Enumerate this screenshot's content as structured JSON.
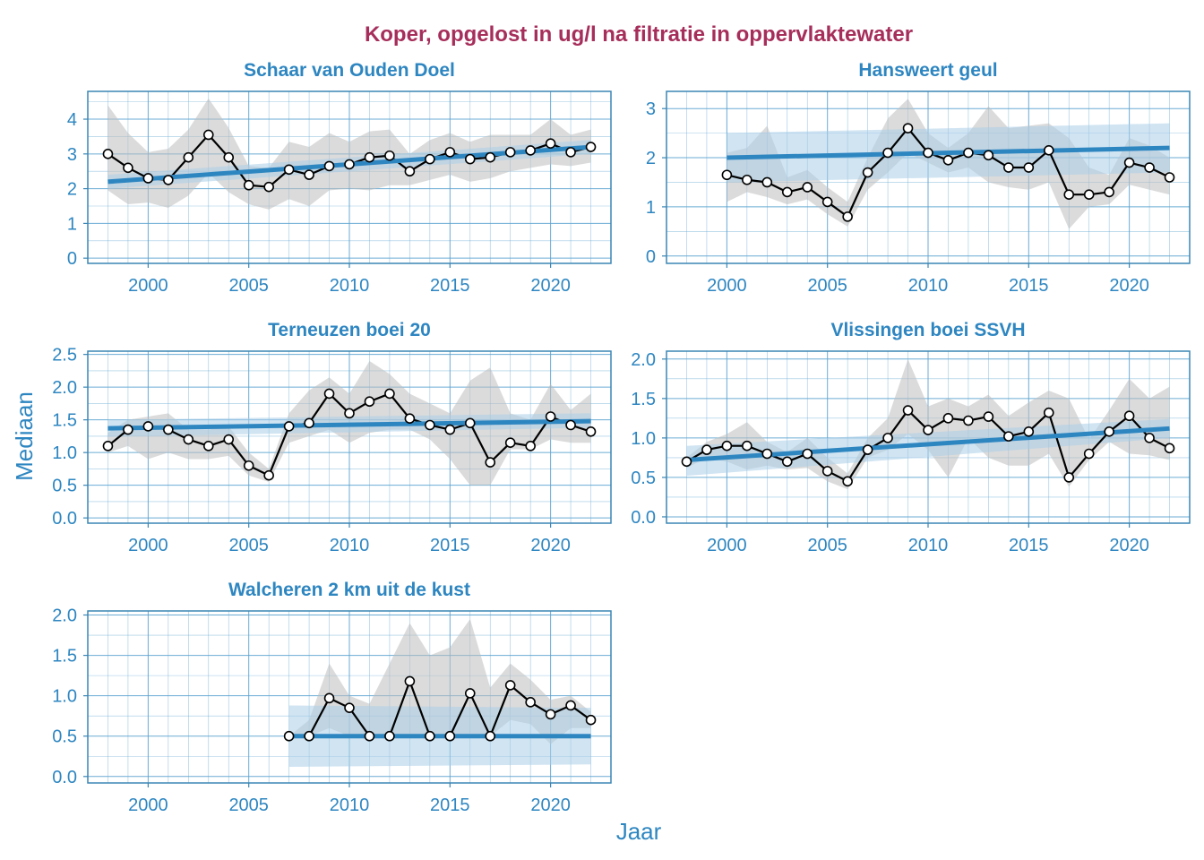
{
  "colors": {
    "title": "#a62e5a",
    "blue": "#2e86c1",
    "grid": "#5ba3d0",
    "frame": "#3a86b4",
    "ribbon": "#bdbdbd",
    "trend_band": "#a9cde8",
    "line": "#000000",
    "point_fill": "#ffffff"
  },
  "chart_data": {
    "type": "line",
    "title": "Koper, opgelost in ug/l na filtratie in oppervlaktewater",
    "xlabel": "Jaar",
    "ylabel": "Mediaan",
    "xlim": [
      1997,
      2023
    ],
    "x_ticks": [
      2000,
      2005,
      2010,
      2015,
      2020
    ],
    "grid": true,
    "panels": [
      {
        "title": "Schaar van Ouden Doel",
        "ylim": [
          -0.15,
          4.8
        ],
        "y_ticks": [
          0,
          1,
          2,
          3,
          4
        ],
        "y_tick_labels": [
          "0",
          "1",
          "2",
          "3",
          "4"
        ],
        "x": [
          1998,
          1999,
          2000,
          2001,
          2002,
          2003,
          2004,
          2005,
          2006,
          2007,
          2008,
          2009,
          2010,
          2011,
          2012,
          2013,
          2014,
          2015,
          2016,
          2017,
          2018,
          2019,
          2020,
          2021,
          2022
        ],
        "y": [
          3.0,
          2.6,
          2.3,
          2.25,
          2.9,
          3.55,
          2.9,
          2.1,
          2.05,
          2.55,
          2.4,
          2.65,
          2.7,
          2.9,
          2.95,
          2.5,
          2.85,
          3.05,
          2.85,
          2.9,
          3.05,
          3.1,
          3.3,
          3.05,
          3.2
        ],
        "lower": [
          1.95,
          1.55,
          1.6,
          1.45,
          1.8,
          2.45,
          1.9,
          1.55,
          1.4,
          1.7,
          1.5,
          1.95,
          2.0,
          1.95,
          2.1,
          2.1,
          2.25,
          2.4,
          2.2,
          2.3,
          2.5,
          2.6,
          2.7,
          2.65,
          2.75
        ],
        "upper": [
          4.4,
          3.6,
          3.05,
          3.15,
          3.7,
          4.6,
          3.75,
          2.65,
          2.6,
          3.35,
          3.2,
          3.6,
          3.35,
          3.65,
          3.7,
          3.0,
          3.4,
          3.6,
          3.35,
          3.55,
          3.55,
          3.55,
          4.0,
          3.55,
          3.7
        ],
        "trend": {
          "x": [
            1998,
            2022
          ],
          "y": [
            2.2,
            3.2
          ]
        },
        "trend_band": {
          "lower": [
            2.0,
            3.0
          ],
          "upper": [
            2.4,
            3.4
          ]
        }
      },
      {
        "title": "Hansweert geul",
        "ylim": [
          -0.15,
          3.35
        ],
        "y_ticks": [
          0,
          1,
          2,
          3
        ],
        "y_tick_labels": [
          "0",
          "1",
          "2",
          "3"
        ],
        "x": [
          2000,
          2001,
          2002,
          2003,
          2004,
          2005,
          2006,
          2007,
          2008,
          2009,
          2010,
          2011,
          2012,
          2013,
          2014,
          2015,
          2016,
          2017,
          2018,
          2019,
          2020,
          2021,
          2022
        ],
        "y": [
          1.65,
          1.55,
          1.5,
          1.3,
          1.4,
          1.1,
          0.8,
          1.7,
          2.1,
          2.6,
          2.1,
          1.95,
          2.1,
          2.05,
          1.8,
          1.8,
          2.15,
          1.25,
          1.25,
          1.3,
          1.9,
          1.8,
          1.6
        ],
        "lower": [
          1.1,
          1.3,
          1.2,
          1.05,
          1.15,
          0.85,
          0.6,
          1.35,
          1.7,
          2.1,
          1.9,
          1.7,
          1.8,
          1.5,
          1.4,
          1.35,
          1.5,
          0.55,
          1.0,
          1.05,
          1.45,
          1.35,
          1.25
        ],
        "upper": [
          2.1,
          2.2,
          2.65,
          1.6,
          1.75,
          1.4,
          1.1,
          2.0,
          2.8,
          3.2,
          2.5,
          2.2,
          2.5,
          3.05,
          2.6,
          2.65,
          2.7,
          2.4,
          1.8,
          1.65,
          2.4,
          2.25,
          2.0
        ],
        "trend": {
          "x": [
            2000,
            2022
          ],
          "y": [
            2.0,
            2.2
          ]
        },
        "trend_band": {
          "lower": [
            1.5,
            1.7
          ],
          "upper": [
            2.5,
            2.7
          ]
        }
      },
      {
        "title": "Terneuzen boei 20",
        "ylim": [
          -0.08,
          2.55
        ],
        "y_ticks": [
          0,
          0.5,
          1,
          1.5,
          2,
          2.5
        ],
        "y_tick_labels": [
          "0.0",
          "0.5",
          "1.0",
          "1.5",
          "2.0",
          "2.5"
        ],
        "x": [
          1998,
          1999,
          2000,
          2001,
          2002,
          2003,
          2004,
          2005,
          2006,
          2007,
          2008,
          2009,
          2010,
          2011,
          2012,
          2013,
          2014,
          2015,
          2016,
          2017,
          2018,
          2019,
          2020,
          2021,
          2022
        ],
        "y": [
          1.1,
          1.35,
          1.4,
          1.35,
          1.2,
          1.1,
          1.2,
          0.8,
          0.65,
          1.4,
          1.45,
          1.9,
          1.6,
          1.78,
          1.9,
          1.52,
          1.42,
          1.35,
          1.45,
          0.85,
          1.15,
          1.1,
          1.55,
          1.42,
          1.32
        ],
        "lower": [
          1.0,
          1.1,
          0.9,
          1.0,
          0.9,
          0.9,
          0.95,
          0.65,
          0.55,
          1.15,
          1.25,
          1.35,
          1.15,
          1.3,
          1.35,
          1.35,
          1.2,
          0.9,
          0.5,
          0.5,
          1.05,
          1.05,
          1.2,
          1.15,
          1.15
        ],
        "upper": [
          1.3,
          1.5,
          1.55,
          1.6,
          1.35,
          1.35,
          1.4,
          1.0,
          0.75,
          1.6,
          1.95,
          2.15,
          1.9,
          2.4,
          2.2,
          1.9,
          1.75,
          1.6,
          2.1,
          2.3,
          1.6,
          1.5,
          2.05,
          1.65,
          1.9
        ],
        "trend": {
          "x": [
            1998,
            2022
          ],
          "y": [
            1.37,
            1.48
          ]
        },
        "trend_band": {
          "lower": [
            1.24,
            1.38
          ],
          "upper": [
            1.5,
            1.6
          ]
        }
      },
      {
        "title": "Vlissingen boei SSVH",
        "ylim": [
          -0.08,
          2.1
        ],
        "y_ticks": [
          0,
          0.5,
          1,
          1.5,
          2
        ],
        "y_tick_labels": [
          "0.0",
          "0.5",
          "1.0",
          "1.5",
          "2.0"
        ],
        "x": [
          1998,
          1999,
          2000,
          2001,
          2002,
          2003,
          2004,
          2005,
          2006,
          2007,
          2008,
          2009,
          2010,
          2011,
          2012,
          2013,
          2014,
          2015,
          2016,
          2017,
          2018,
          2019,
          2020,
          2021,
          2022
        ],
        "y": [
          0.7,
          0.85,
          0.9,
          0.9,
          0.8,
          0.7,
          0.8,
          0.58,
          0.45,
          0.85,
          1.0,
          1.35,
          1.1,
          1.25,
          1.22,
          1.27,
          1.02,
          1.08,
          1.32,
          0.5,
          0.8,
          1.08,
          1.28,
          1.0,
          0.87
        ],
        "lower": [
          0.62,
          0.75,
          0.7,
          0.6,
          0.65,
          0.6,
          0.62,
          0.45,
          0.35,
          0.75,
          0.85,
          1.05,
          0.85,
          0.5,
          1.0,
          0.75,
          0.65,
          0.65,
          0.8,
          0.38,
          0.72,
          0.95,
          0.8,
          0.78,
          0.72
        ],
        "upper": [
          0.75,
          0.95,
          1.05,
          1.2,
          0.95,
          0.82,
          1.0,
          0.75,
          0.55,
          1.0,
          1.25,
          2.0,
          1.4,
          1.5,
          1.4,
          1.55,
          1.28,
          1.45,
          1.6,
          1.5,
          0.98,
          1.35,
          1.75,
          1.5,
          1.65
        ],
        "trend": {
          "x": [
            1998,
            2022
          ],
          "y": [
            0.72,
            1.12
          ]
        },
        "trend_band": {
          "lower": [
            0.52,
            1.0
          ],
          "upper": [
            0.9,
            1.24
          ]
        }
      },
      {
        "title": "Walcheren 2 km uit de kust",
        "ylim": [
          -0.08,
          2.05
        ],
        "y_ticks": [
          0,
          0.5,
          1,
          1.5,
          2
        ],
        "y_tick_labels": [
          "0.0",
          "0.5",
          "1.0",
          "1.5",
          "2.0"
        ],
        "x": [
          2007,
          2008,
          2009,
          2010,
          2011,
          2012,
          2013,
          2014,
          2015,
          2016,
          2017,
          2018,
          2019,
          2020,
          2021,
          2022
        ],
        "y": [
          0.5,
          0.5,
          0.97,
          0.85,
          0.5,
          0.5,
          1.18,
          0.5,
          0.5,
          1.03,
          0.5,
          1.13,
          0.92,
          0.77,
          0.88,
          0.7
        ],
        "lower": [
          0.5,
          0.5,
          0.6,
          0.5,
          0.5,
          0.5,
          0.5,
          0.5,
          0.5,
          0.5,
          0.5,
          0.7,
          0.65,
          0.4,
          0.6,
          0.6
        ],
        "upper": [
          0.5,
          0.7,
          1.4,
          1.0,
          0.9,
          1.4,
          1.9,
          1.5,
          1.6,
          1.95,
          1.1,
          1.4,
          1.2,
          0.95,
          1.0,
          0.8
        ],
        "trend": {
          "x": [
            2007,
            2022
          ],
          "y": [
            0.5,
            0.5
          ]
        },
        "trend_band": {
          "lower": [
            0.12,
            0.15
          ],
          "upper": [
            0.88,
            0.85
          ]
        }
      }
    ]
  }
}
